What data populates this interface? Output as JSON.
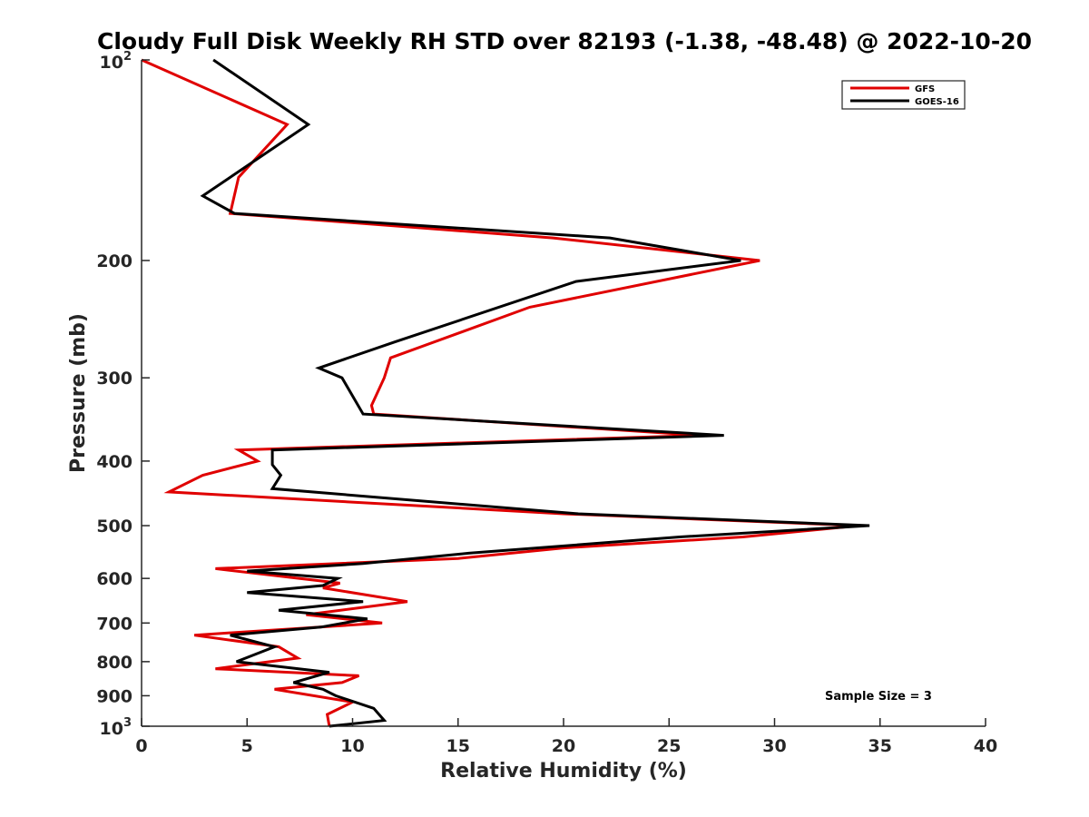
{
  "chart_data": {
    "type": "line",
    "title": "Cloudy Full Disk Weekly RH STD over 82193 (-1.38, -48.48) @ 2022-10-20",
    "xlabel": "Relative Humidity (%)",
    "ylabel": "Pressure (mb)",
    "xlim": [
      0,
      40
    ],
    "ylim": [
      100,
      1000
    ],
    "y_scale": "log",
    "y_reversed": true,
    "grid": false,
    "legend_placement": "top-right",
    "x_ticks": [
      "0",
      "5",
      "10",
      "15",
      "20",
      "25",
      "30",
      "35",
      "40"
    ],
    "y_ticks": [
      {
        "value": 100,
        "base": "10",
        "exp": "2"
      },
      {
        "value": 200,
        "label": "200"
      },
      {
        "value": 300,
        "label": "300"
      },
      {
        "value": 400,
        "label": "400"
      },
      {
        "value": 500,
        "label": "500"
      },
      {
        "value": 600,
        "label": "600"
      },
      {
        "value": 700,
        "label": "700"
      },
      {
        "value": 800,
        "label": "800"
      },
      {
        "value": 900,
        "label": "900"
      },
      {
        "value": 1000,
        "base": "10",
        "exp": "3"
      }
    ],
    "series": [
      {
        "name": "GFS",
        "color": "#e00000",
        "points": [
          [
            0.0,
            100
          ],
          [
            6.9,
            125
          ],
          [
            4.6,
            150
          ],
          [
            4.2,
            170
          ],
          [
            19.5,
            185
          ],
          [
            29.3,
            200
          ],
          [
            18.4,
            235
          ],
          [
            11.8,
            280
          ],
          [
            11.5,
            300
          ],
          [
            10.9,
            330
          ],
          [
            11.0,
            340
          ],
          [
            26.5,
            366
          ],
          [
            4.6,
            385
          ],
          [
            5.5,
            400
          ],
          [
            2.9,
            420
          ],
          [
            1.3,
            445
          ],
          [
            20.0,
            480
          ],
          [
            34.0,
            500
          ],
          [
            28.5,
            520
          ],
          [
            20.0,
            540
          ],
          [
            15.0,
            560
          ],
          [
            3.5,
            580
          ],
          [
            7.5,
            600
          ],
          [
            9.4,
            610
          ],
          [
            8.6,
            620
          ],
          [
            12.6,
            650
          ],
          [
            7.8,
            680
          ],
          [
            11.4,
            700
          ],
          [
            2.5,
            730
          ],
          [
            6.5,
            760
          ],
          [
            7.4,
            790
          ],
          [
            3.5,
            820
          ],
          [
            10.3,
            840
          ],
          [
            9.5,
            860
          ],
          [
            6.3,
            880
          ],
          [
            10.0,
            920
          ],
          [
            8.8,
            960
          ],
          [
            8.9,
            1000
          ]
        ]
      },
      {
        "name": "GOES-16",
        "color": "#000000",
        "points": [
          [
            3.4,
            100
          ],
          [
            7.9,
            125
          ],
          [
            2.9,
            160
          ],
          [
            4.4,
            170
          ],
          [
            22.2,
            185
          ],
          [
            28.4,
            200
          ],
          [
            20.6,
            215
          ],
          [
            12.0,
            265
          ],
          [
            8.4,
            290
          ],
          [
            9.5,
            300
          ],
          [
            10.5,
            340
          ],
          [
            27.6,
            366
          ],
          [
            6.2,
            385
          ],
          [
            6.2,
            405
          ],
          [
            6.6,
            420
          ],
          [
            6.2,
            440
          ],
          [
            20.7,
            480
          ],
          [
            34.5,
            500
          ],
          [
            25.5,
            520
          ],
          [
            15.5,
            550
          ],
          [
            10.5,
            570
          ],
          [
            5.0,
            585
          ],
          [
            9.3,
            600
          ],
          [
            8.6,
            615
          ],
          [
            5.0,
            630
          ],
          [
            10.5,
            650
          ],
          [
            6.5,
            670
          ],
          [
            10.7,
            690
          ],
          [
            8.5,
            710
          ],
          [
            4.2,
            730
          ],
          [
            6.3,
            760
          ],
          [
            4.5,
            800
          ],
          [
            8.9,
            830
          ],
          [
            7.2,
            860
          ],
          [
            8.6,
            880
          ],
          [
            9.2,
            900
          ],
          [
            11.0,
            940
          ],
          [
            11.5,
            980
          ],
          [
            8.9,
            1000
          ]
        ]
      }
    ],
    "annotation": "Sample Size = 3"
  }
}
